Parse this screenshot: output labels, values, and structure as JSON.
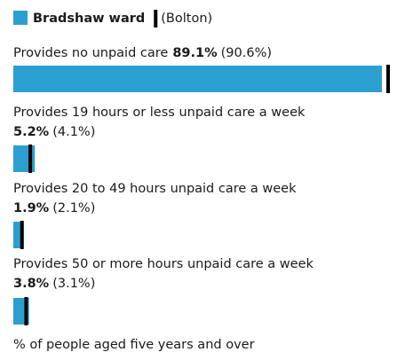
{
  "chart_data": {
    "type": "bar",
    "orientation": "horizontal",
    "categories": [
      "Provides no unpaid care",
      "Provides 19 hours or less unpaid care a week",
      "Provides 20 to 49 hours unpaid care a week",
      "Provides 50 or more hours unpaid care a week"
    ],
    "series": [
      {
        "name": "Bradshaw ward",
        "color": "#2b9fd0",
        "values": [
          89.1,
          5.2,
          1.9,
          3.8
        ],
        "value_labels": [
          "89.1%",
          "5.2%",
          "1.9%",
          "3.8%"
        ]
      },
      {
        "name": "(Bolton)",
        "color": "#000000",
        "values": [
          90.6,
          4.1,
          2.1,
          3.1
        ],
        "value_labels": [
          "(90.6%)",
          "(4.1%)",
          "(2.1%)",
          "(3.1%)"
        ]
      }
    ],
    "note": "% of people aged five years and over"
  }
}
